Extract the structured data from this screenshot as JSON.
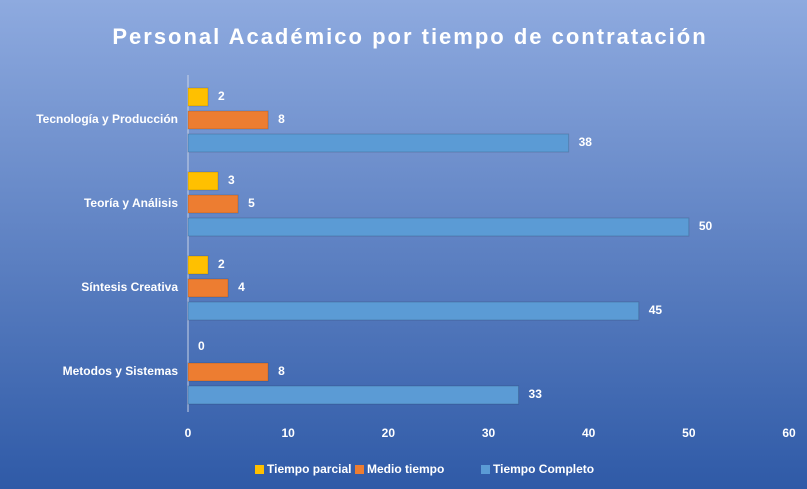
{
  "chart_data": {
    "type": "bar",
    "orientation": "horizontal",
    "title": "Personal Académico por tiempo de contratación",
    "categories": [
      "Tecnología y Producción",
      "Teoría y Análisis",
      "Síntesis Creativa",
      "Metodos y Sistemas"
    ],
    "series": [
      {
        "name": "Tiempo parcial",
        "color": "#ffc000",
        "values": [
          2,
          3,
          2,
          0
        ]
      },
      {
        "name": "Medio tiempo",
        "color": "#ed7d31",
        "values": [
          8,
          5,
          4,
          8
        ]
      },
      {
        "name": "Tiempo Completo",
        "color": "#5b9bd5",
        "values": [
          38,
          50,
          45,
          33
        ]
      }
    ],
    "xlim": [
      0,
      60
    ],
    "xticks": [
      0,
      10,
      20,
      30,
      40,
      50,
      60
    ],
    "grid": false,
    "legend": "bottom"
  }
}
